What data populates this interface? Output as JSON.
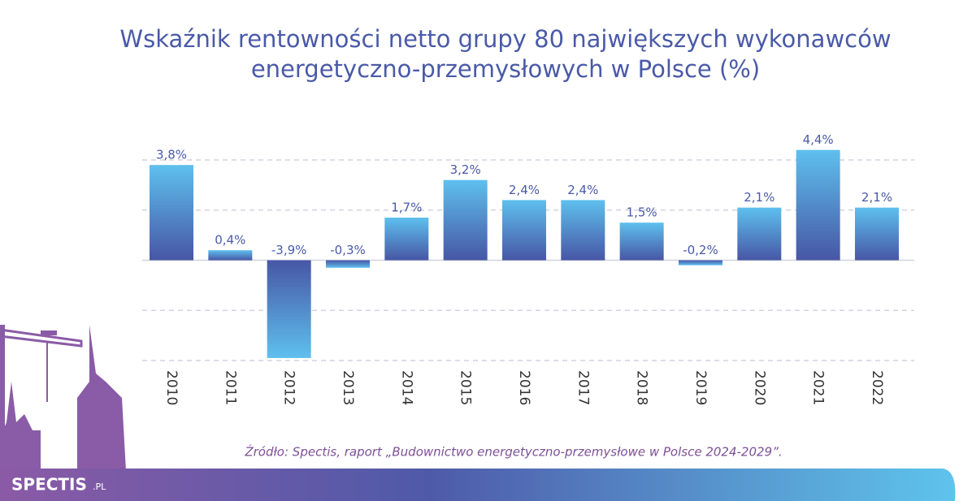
{
  "chart_data": {
    "type": "bar",
    "title": [
      "Wskaźnik rentowności netto grupy 80 największych wykonawców",
      "energetyczno-przemysłowych w Polsce (%)"
    ],
    "categories": [
      "2010",
      "2011",
      "2012",
      "2013",
      "2014",
      "2015",
      "2016",
      "2017",
      "2018",
      "2019",
      "2020",
      "2021",
      "2022"
    ],
    "values": [
      3.8,
      0.4,
      -3.9,
      -0.3,
      1.7,
      3.2,
      2.4,
      2.4,
      1.5,
      -0.2,
      2.1,
      4.4,
      2.1
    ],
    "value_labels": [
      "3,8%",
      "0,4%",
      "-3,9%",
      "-0,3%",
      "1,7%",
      "3,2%",
      "2,4%",
      "2,4%",
      "1,5%",
      "-0,2%",
      "2,1%",
      "4,4%",
      "2,1%"
    ],
    "colors": [
      "#5ec0ee",
      "#4756a5"
    ],
    "ylim": [
      -4,
      4
    ],
    "yticks": [
      -4,
      -2,
      0,
      2,
      4
    ],
    "grid": true,
    "source": "Źródło: Spectis, raport „Budownictwo energetyczno-przemysłowe w Polsce 2024-2029”.",
    "logo": {
      "name": "SPECTIS",
      "suffix": ".PL"
    }
  }
}
